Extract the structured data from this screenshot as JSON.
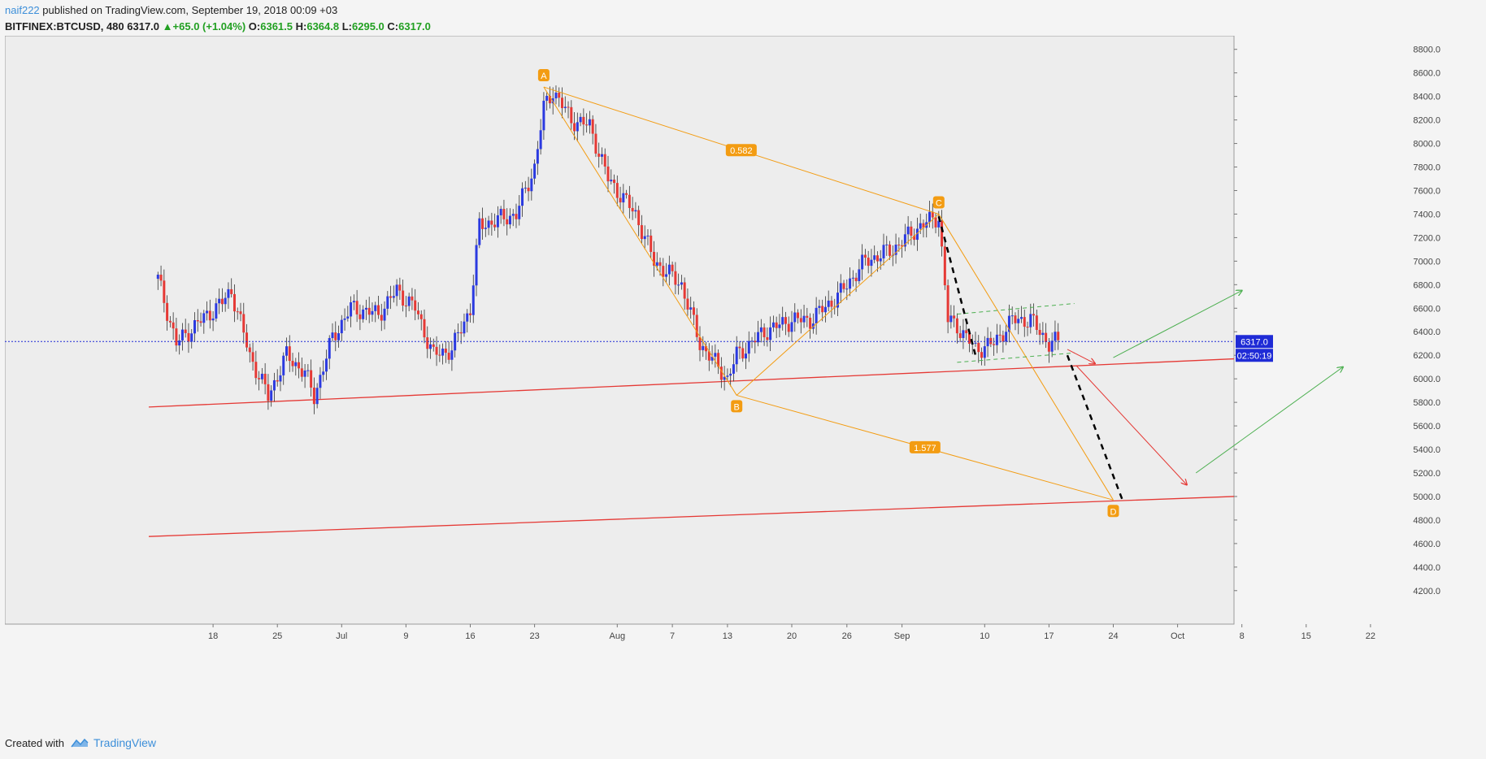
{
  "header": {
    "author": "naif222",
    "published_text": "published on TradingView.com, September 19, 2018 00:09 +03",
    "symbol": "BITFINEX:BTCUSD, 480",
    "last": "6317.0",
    "change_arrow": "▲",
    "change": "+65.0 (+1.04%)",
    "o_label": "O:",
    "o_value": "6361.5",
    "h_label": "H:",
    "h_value": "6364.8",
    "l_label": "L:",
    "l_value": "6295.0",
    "c_label": "C:",
    "c_value": "6317.0"
  },
  "footer": {
    "created_with": "Created with",
    "brand": "TradingView"
  },
  "chart_data": {
    "type": "candlestick",
    "symbol": "BITFINEX:BTCUSD",
    "interval": "480",
    "ylim": [
      4000,
      8900
    ],
    "y_ticks": [
      "8800.0",
      "8600.0",
      "8400.0",
      "8200.0",
      "8000.0",
      "7800.0",
      "7600.0",
      "7400.0",
      "7200.0",
      "7000.0",
      "6800.0",
      "6600.0",
      "6400.0",
      "6200.0",
      "6000.0",
      "5800.0",
      "5600.0",
      "5400.0",
      "5200.0",
      "5000.0",
      "4800.0",
      "4600.0",
      "4400.0",
      "4200.0"
    ],
    "x_ticks": [
      "18",
      "25",
      "Jul",
      "9",
      "16",
      "23",
      "Aug",
      "7",
      "13",
      "20",
      "26",
      "Sep",
      "10",
      "17",
      "24",
      "Oct",
      "8",
      "15",
      "22"
    ],
    "last_price": "6317.0",
    "countdown": "02:50:19",
    "grid": false,
    "price_path": [
      [
        "Jun 12",
        6850
      ],
      [
        "Jun 14",
        6300
      ],
      [
        "Jun 16",
        6450
      ],
      [
        "Jun 19",
        6650
      ],
      [
        "Jun 20",
        6750
      ],
      [
        "Jun 22",
        6200
      ],
      [
        "Jun 24",
        5850
      ],
      [
        "Jun 26",
        6200
      ],
      [
        "Jun 28",
        6050
      ],
      [
        "Jun 29",
        5850
      ],
      [
        "Jul 1",
        6350
      ],
      [
        "Jul 3",
        6600
      ],
      [
        "Jul 6",
        6550
      ],
      [
        "Jul 8",
        6750
      ],
      [
        "Jul 10",
        6600
      ],
      [
        "Jul 12",
        6200
      ],
      [
        "Jul 14",
        6250
      ],
      [
        "Jul 16",
        6600
      ],
      [
        "Jul 17",
        7300
      ],
      [
        "Jul 21",
        7400
      ],
      [
        "Jul 23",
        7800
      ],
      [
        "Jul 24",
        8300
      ],
      [
        "Jul 25",
        8450
      ],
      [
        "Jul 27",
        8200
      ],
      [
        "Jul 29",
        8150
      ],
      [
        "Jul 31",
        7700
      ],
      [
        "Aug 3",
        7400
      ],
      [
        "Aug 5",
        7000
      ],
      [
        "Aug 8",
        6800
      ],
      [
        "Aug 10",
        6300
      ],
      [
        "Aug 13",
        6000
      ],
      [
        "Aug 14",
        6200
      ],
      [
        "Aug 17",
        6400
      ],
      [
        "Aug 20",
        6500
      ],
      [
        "Aug 22",
        6500
      ],
      [
        "Aug 25",
        6700
      ],
      [
        "Aug 28",
        7000
      ],
      [
        "Aug 31",
        7100
      ],
      [
        "Sep 3",
        7300
      ],
      [
        "Sep 5",
        7380
      ],
      [
        "Sep 6",
        6500
      ],
      [
        "Sep 7",
        6450
      ],
      [
        "Sep 9",
        6250
      ],
      [
        "Sep 11",
        6300
      ],
      [
        "Sep 13",
        6500
      ],
      [
        "Sep 15",
        6500
      ],
      [
        "Sep 17",
        6300
      ],
      [
        "Sep 18",
        6317
      ]
    ],
    "harmonic_pattern": {
      "points": [
        {
          "label": "A",
          "date": "Jul 24",
          "price": 8480
        },
        {
          "label": "B",
          "date": "Aug 14",
          "price": 5860
        },
        {
          "label": "C",
          "date": "Sep 5",
          "price": 7400
        },
        {
          "label": "D",
          "date": "Sep 24",
          "price": 4970
        }
      ],
      "ratios": [
        "0.582",
        "1.577"
      ]
    },
    "trendlines": [
      {
        "name": "upper support",
        "from": [
          "Jun 11",
          5760
        ],
        "to": [
          "Oct 26",
          6170
        ],
        "color": "#e53935"
      },
      {
        "name": "lower support",
        "from": [
          "Jun 11",
          4660
        ],
        "to": [
          "Oct 26",
          5000
        ],
        "color": "#e53935"
      }
    ],
    "channel": {
      "upper": {
        "from": [
          "Sep 7",
          6550
        ],
        "to": [
          "Sep 18",
          6640
        ]
      },
      "lower": {
        "from": [
          "Sep 7",
          6140
        ],
        "to": [
          "Sep 18",
          6220
        ]
      },
      "color": "#4caf50"
    },
    "projections": [
      {
        "kind": "dashed",
        "color": "#000000",
        "from": [
          "Sep 5",
          7380
        ],
        "to": [
          "Sep 9",
          6200
        ]
      },
      {
        "kind": "dashed",
        "color": "#000000",
        "from": [
          "Sep 19",
          6200
        ],
        "to": [
          "Sep 25",
          4970
        ]
      },
      {
        "kind": "arrow",
        "color": "#e53935",
        "from": [
          "Sep 19",
          6250
        ],
        "to": [
          "Sep 22",
          6130
        ]
      },
      {
        "kind": "arrow",
        "color": "#e53935",
        "from": [
          "Sep 20",
          6110
        ],
        "to": [
          "Oct 2",
          5100
        ]
      },
      {
        "kind": "arrow",
        "color": "#4caf50",
        "from": [
          "Sep 24",
          6180
        ],
        "to": [
          "Oct 8",
          6750
        ]
      },
      {
        "kind": "arrow",
        "color": "#4caf50",
        "from": [
          "Oct 3",
          5200
        ],
        "to": [
          "Oct 19",
          6100
        ]
      }
    ],
    "colors": {
      "up": "#2b3ae0",
      "down": "#e53935",
      "pattern": "#f39c12",
      "support": "#e53935",
      "channel": "#4caf50",
      "price_label": "#1f2bd6"
    }
  }
}
